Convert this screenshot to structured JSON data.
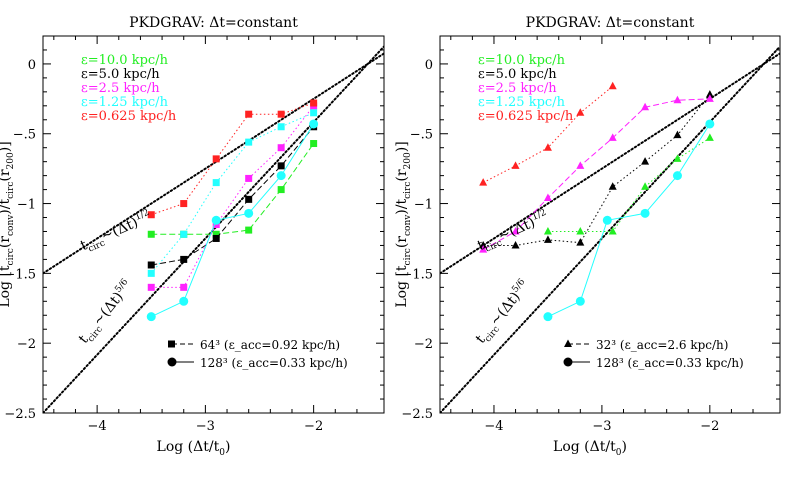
{
  "figure": {
    "ylabel": "Log [t_circ(r_conv)/t_circ(r_200)]",
    "xlabel": "Log (Δt/t₀)"
  },
  "chart_data": [
    {
      "type": "scatter",
      "title": "PKDGRAV: Δt=constant",
      "xlabel": "Log (Δt/t₀)",
      "ylabel": "Log [t_circ(r_conv)/t_circ(r_200)]",
      "xlim": [
        -4.5,
        -1.35
      ],
      "ylim": [
        -2.5,
        0.2
      ],
      "xticks": [
        -4,
        -3,
        -2
      ],
      "yticks": [
        0,
        -0.5,
        -1,
        -1.5,
        -2,
        -2.5
      ],
      "grid": false,
      "legend": {
        "position": "top-left",
        "entries": [
          {
            "label": "ε=10.0 kpc/h",
            "color": "#22ee22"
          },
          {
            "label": "ε=5.0 kpc/h",
            "color": "#000000"
          },
          {
            "label": "ε=2.5 kpc/h",
            "color": "#ff22ff"
          },
          {
            "label": "ε=1.25 kpc/h",
            "color": "#22ffff"
          },
          {
            "label": "ε=0.625 kpc/h",
            "color": "#ff2222"
          }
        ]
      },
      "marker_legend": {
        "position": "bottom-right",
        "entries": [
          {
            "marker": "square",
            "label": "64³ (ε_acc=0.92 kpc/h)"
          },
          {
            "marker": "circle",
            "label": "128³ (ε_acc=0.33 kpc/h)"
          }
        ]
      },
      "annotations": [
        {
          "text": "t_circ~(Δt)^1/2"
        },
        {
          "text": "t_circ~(Δt)^5/6"
        }
      ],
      "reference_lines": [
        {
          "name": "t_circ~(Δt)^1/2",
          "slope": 0.5,
          "intercept": 0.75
        },
        {
          "name": "t_circ~(Δt)^5/6",
          "slope": 0.8333,
          "intercept": 1.25
        }
      ],
      "series": [
        {
          "name": "ε=10.0 kpc/h",
          "color": "#22ee22",
          "marker": "square",
          "dash": "dash",
          "x": [
            -3.5,
            -3.2,
            -2.9,
            -2.6,
            -2.3,
            -2.0
          ],
          "y": [
            -1.22,
            -1.22,
            -1.22,
            -1.19,
            -0.9,
            -0.57
          ]
        },
        {
          "name": "ε=5.0 kpc/h",
          "color": "#000000",
          "marker": "square",
          "dash": "dash",
          "x": [
            -3.5,
            -3.2,
            -2.9,
            -2.6,
            -2.3,
            -2.0
          ],
          "y": [
            -1.44,
            -1.4,
            -1.25,
            -0.97,
            -0.73,
            -0.45
          ]
        },
        {
          "name": "ε=2.5 kpc/h",
          "color": "#ff22ff",
          "marker": "square",
          "dash": "dot",
          "x": [
            -3.5,
            -3.2,
            -2.9,
            -2.6,
            -2.3,
            -2.0
          ],
          "y": [
            -1.6,
            -1.6,
            -1.15,
            -0.82,
            -0.6,
            -0.3
          ]
        },
        {
          "name": "ε=1.25 kpc/h",
          "color": "#22ffff",
          "marker": "square",
          "dash": "dot",
          "x": [
            -3.5,
            -3.2,
            -2.9,
            -2.6,
            -2.3,
            -2.0
          ],
          "y": [
            -1.5,
            -1.22,
            -0.85,
            -0.56,
            -0.45,
            -0.35
          ]
        },
        {
          "name": "ε=0.625 kpc/h",
          "color": "#ff2222",
          "marker": "square",
          "dash": "dot",
          "x": [
            -3.5,
            -3.2,
            -2.9,
            -2.6,
            -2.3,
            -2.0
          ],
          "y": [
            -1.08,
            -1.0,
            -0.68,
            -0.36,
            -0.36,
            -0.28
          ]
        },
        {
          "name": "128³",
          "color": "#22ffff",
          "marker": "circle",
          "dash": "solid",
          "x": [
            -3.5,
            -3.2,
            -2.9,
            -2.6,
            -2.3,
            -2.0
          ],
          "y": [
            -1.81,
            -1.7,
            -1.12,
            -1.07,
            -0.8,
            -0.43
          ]
        }
      ]
    },
    {
      "type": "scatter",
      "title": "PKDGRAV: Δt=constant",
      "xlabel": "Log (Δt/t₀)",
      "ylabel": "Log [t_circ(r_conv)/t_circ(r_200)]",
      "xlim": [
        -4.5,
        -1.35
      ],
      "ylim": [
        -2.5,
        0.2
      ],
      "xticks": [
        -4,
        -3,
        -2
      ],
      "yticks": [
        0,
        -0.5,
        -1,
        -1.5,
        -2,
        -2.5
      ],
      "grid": false,
      "legend": {
        "position": "top-left",
        "entries": [
          {
            "label": "ε=10.0 kpc/h",
            "color": "#22ee22"
          },
          {
            "label": "ε=5.0 kpc/h",
            "color": "#000000"
          },
          {
            "label": "ε=2.5 kpc/h",
            "color": "#ff22ff"
          },
          {
            "label": "ε=1.25 kpc/h",
            "color": "#22ffff"
          },
          {
            "label": "ε=0.625 kpc/h",
            "color": "#ff2222"
          }
        ]
      },
      "marker_legend": {
        "position": "bottom-right",
        "entries": [
          {
            "marker": "triangle",
            "label": "32³ (ε_acc=2.6 kpc/h)"
          },
          {
            "marker": "circle",
            "label": "128³ (ε_acc=0.33 kpc/h)"
          }
        ]
      },
      "annotations": [
        {
          "text": "t_circ~(Δt)^1/2"
        },
        {
          "text": "t_circ~(Δt)^5/6"
        }
      ],
      "reference_lines": [
        {
          "name": "t_circ~(Δt)^1/2",
          "slope": 0.5,
          "intercept": 0.75
        },
        {
          "name": "t_circ~(Δt)^5/6",
          "slope": 0.8333,
          "intercept": 1.25
        }
      ],
      "series": [
        {
          "name": "ε=10.0 kpc/h",
          "color": "#22ee22",
          "marker": "triangle",
          "dash": "dot",
          "x": [
            -3.5,
            -3.2,
            -2.9,
            -2.6,
            -2.3,
            -2.0
          ],
          "y": [
            -1.2,
            -1.2,
            -1.2,
            -0.88,
            -0.68,
            -0.53
          ]
        },
        {
          "name": "ε=5.0 kpc/h",
          "color": "#000000",
          "marker": "triangle",
          "dash": "dot",
          "x": [
            -4.1,
            -3.8,
            -3.5,
            -3.2,
            -2.9,
            -2.6,
            -2.3,
            -2.0
          ],
          "y": [
            -1.3,
            -1.3,
            -1.26,
            -1.28,
            -0.88,
            -0.7,
            -0.51,
            -0.22
          ]
        },
        {
          "name": "ε=2.5 kpc/h",
          "color": "#ff22ff",
          "marker": "triangle",
          "dash": "dash",
          "x": [
            -4.1,
            -3.8,
            -3.5,
            -3.2,
            -2.9,
            -2.6,
            -2.3,
            -2.0
          ],
          "y": [
            -1.33,
            -1.2,
            -0.96,
            -0.73,
            -0.53,
            -0.31,
            -0.26,
            -0.25
          ]
        },
        {
          "name": "ε=0.625 kpc/h",
          "color": "#ff2222",
          "marker": "triangle",
          "dash": "dot",
          "x": [
            -4.1,
            -3.8,
            -3.5,
            -3.2,
            -2.9
          ],
          "y": [
            -0.85,
            -0.73,
            -0.6,
            -0.35,
            -0.16
          ]
        },
        {
          "name": "128³",
          "color": "#22ffff",
          "marker": "circle",
          "dash": "solid",
          "x": [
            -3.5,
            -3.2,
            -2.95,
            -2.6,
            -2.3,
            -2.0
          ],
          "y": [
            -1.81,
            -1.7,
            -1.12,
            -1.07,
            -0.8,
            -0.43
          ]
        }
      ]
    }
  ]
}
